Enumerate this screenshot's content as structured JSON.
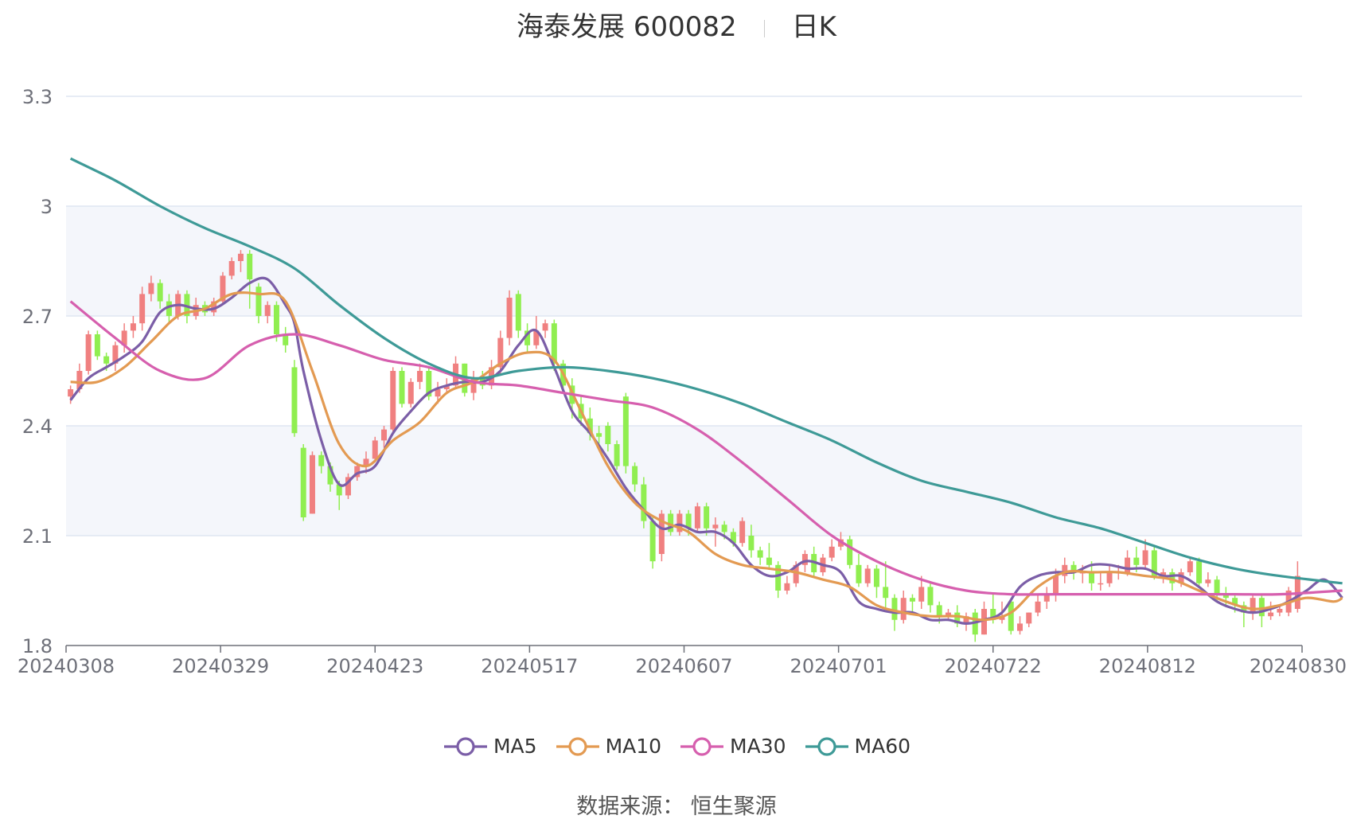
{
  "title": {
    "stock": "海泰发展 600082",
    "period": "日K"
  },
  "source": "数据来源： 恒生聚源",
  "colors": {
    "up": "#f08080",
    "down": "#90ee50",
    "MA5": "#7b5ea7",
    "MA10": "#e39a52",
    "MA30": "#d65fae",
    "MA60": "#3e9a97",
    "grid": "#dfe6f2",
    "band": "#f4f6fb",
    "axis": "#6e7079"
  },
  "chart_data": {
    "type": "candlestick",
    "title": "海泰发展 600082 日K",
    "ylim": [
      1.8,
      3.3
    ],
    "y_ticks": [
      "1.8",
      "2.1",
      "2.4",
      "2.7",
      "3",
      "3.3"
    ],
    "x_ticks": [
      "20240308",
      "20240329",
      "20240423",
      "20240517",
      "20240607",
      "20240701",
      "20240722",
      "20240812",
      "20240830"
    ],
    "grid": true,
    "legend_position": "bottom-center",
    "candles": [
      [
        2.48,
        2.5,
        2.46,
        2.51
      ],
      [
        2.5,
        2.55,
        2.49,
        2.57
      ],
      [
        2.55,
        2.65,
        2.54,
        2.66
      ],
      [
        2.65,
        2.59,
        2.58,
        2.66
      ],
      [
        2.59,
        2.57,
        2.55,
        2.6
      ],
      [
        2.57,
        2.62,
        2.55,
        2.63
      ],
      [
        2.62,
        2.66,
        2.6,
        2.68
      ],
      [
        2.66,
        2.68,
        2.64,
        2.7
      ],
      [
        2.68,
        2.76,
        2.66,
        2.78
      ],
      [
        2.76,
        2.79,
        2.74,
        2.81
      ],
      [
        2.79,
        2.74,
        2.72,
        2.8
      ],
      [
        2.74,
        2.7,
        2.68,
        2.76
      ],
      [
        2.7,
        2.76,
        2.69,
        2.77
      ],
      [
        2.76,
        2.7,
        2.68,
        2.77
      ],
      [
        2.7,
        2.73,
        2.69,
        2.75
      ],
      [
        2.73,
        2.71,
        2.7,
        2.74
      ],
      [
        2.71,
        2.74,
        2.7,
        2.75
      ],
      [
        2.74,
        2.81,
        2.73,
        2.82
      ],
      [
        2.81,
        2.85,
        2.8,
        2.86
      ],
      [
        2.85,
        2.87,
        2.82,
        2.88
      ],
      [
        2.87,
        2.8,
        2.72,
        2.88
      ],
      [
        2.78,
        2.7,
        2.68,
        2.79
      ],
      [
        2.7,
        2.73,
        2.68,
        2.74
      ],
      [
        2.73,
        2.65,
        2.63,
        2.74
      ],
      [
        2.65,
        2.62,
        2.6,
        2.67
      ],
      [
        2.56,
        2.38,
        2.37,
        2.58
      ],
      [
        2.34,
        2.15,
        2.14,
        2.35
      ],
      [
        2.16,
        2.32,
        2.16,
        2.33
      ],
      [
        2.32,
        2.29,
        2.27,
        2.33
      ],
      [
        2.29,
        2.24,
        2.22,
        2.3
      ],
      [
        2.24,
        2.21,
        2.17,
        2.25
      ],
      [
        2.21,
        2.26,
        2.2,
        2.27
      ],
      [
        2.26,
        2.29,
        2.25,
        2.3
      ],
      [
        2.29,
        2.31,
        2.27,
        2.33
      ],
      [
        2.31,
        2.36,
        2.3,
        2.37
      ],
      [
        2.36,
        2.39,
        2.34,
        2.4
      ],
      [
        2.39,
        2.55,
        2.38,
        2.56
      ],
      [
        2.55,
        2.46,
        2.45,
        2.56
      ],
      [
        2.46,
        2.52,
        2.45,
        2.53
      ],
      [
        2.52,
        2.55,
        2.5,
        2.57
      ],
      [
        2.55,
        2.48,
        2.47,
        2.56
      ],
      [
        2.48,
        2.5,
        2.46,
        2.52
      ],
      [
        2.5,
        2.51,
        2.49,
        2.53
      ],
      [
        2.51,
        2.57,
        2.5,
        2.59
      ],
      [
        2.57,
        2.49,
        2.48,
        2.57
      ],
      [
        2.49,
        2.53,
        2.47,
        2.55
      ],
      [
        2.53,
        2.51,
        2.5,
        2.55
      ],
      [
        2.51,
        2.56,
        2.5,
        2.58
      ],
      [
        2.56,
        2.64,
        2.54,
        2.66
      ],
      [
        2.64,
        2.75,
        2.62,
        2.77
      ],
      [
        2.76,
        2.66,
        2.64,
        2.77
      ],
      [
        2.66,
        2.62,
        2.6,
        2.68
      ],
      [
        2.62,
        2.66,
        2.61,
        2.7
      ],
      [
        2.66,
        2.68,
        2.64,
        2.69
      ],
      [
        2.68,
        2.57,
        2.55,
        2.69
      ],
      [
        2.57,
        2.51,
        2.5,
        2.58
      ],
      [
        2.51,
        2.46,
        2.42,
        2.53
      ],
      [
        2.46,
        2.42,
        2.4,
        2.48
      ],
      [
        2.42,
        2.38,
        2.36,
        2.45
      ],
      [
        2.38,
        2.37,
        2.35,
        2.4
      ],
      [
        2.4,
        2.35,
        2.33,
        2.41
      ],
      [
        2.35,
        2.29,
        2.28,
        2.36
      ],
      [
        2.48,
        2.29,
        2.27,
        2.49
      ],
      [
        2.29,
        2.24,
        2.22,
        2.3
      ],
      [
        2.24,
        2.14,
        2.12,
        2.26
      ],
      [
        2.14,
        2.03,
        2.01,
        2.15
      ],
      [
        2.05,
        2.16,
        2.03,
        2.17
      ],
      [
        2.16,
        2.11,
        2.1,
        2.17
      ],
      [
        2.11,
        2.16,
        2.1,
        2.17
      ],
      [
        2.16,
        2.12,
        2.1,
        2.17
      ],
      [
        2.12,
        2.18,
        2.11,
        2.19
      ],
      [
        2.18,
        2.12,
        2.1,
        2.19
      ],
      [
        2.12,
        2.13,
        2.07,
        2.15
      ],
      [
        2.13,
        2.11,
        2.09,
        2.14
      ],
      [
        2.11,
        2.08,
        2.07,
        2.12
      ],
      [
        2.08,
        2.14,
        2.07,
        2.15
      ],
      [
        2.1,
        2.06,
        2.04,
        2.13
      ],
      [
        2.06,
        2.04,
        2.02,
        2.07
      ],
      [
        2.04,
        2.02,
        2.01,
        2.08
      ],
      [
        2.02,
        1.95,
        1.93,
        2.03
      ],
      [
        1.95,
        1.97,
        1.94,
        1.99
      ],
      [
        1.97,
        2.02,
        1.96,
        2.03
      ],
      [
        2.02,
        2.05,
        2.0,
        2.06
      ],
      [
        2.05,
        2.0,
        1.99,
        2.07
      ],
      [
        2.0,
        2.04,
        1.99,
        2.05
      ],
      [
        2.04,
        2.07,
        2.03,
        2.09
      ],
      [
        2.07,
        2.09,
        2.06,
        2.11
      ],
      [
        2.09,
        2.02,
        2.01,
        2.1
      ],
      [
        2.02,
        1.97,
        1.96,
        2.05
      ],
      [
        1.97,
        2.01,
        1.96,
        2.02
      ],
      [
        2.01,
        1.96,
        1.93,
        2.02
      ],
      [
        1.96,
        1.93,
        1.9,
        2.03
      ],
      [
        1.93,
        1.87,
        1.84,
        1.94
      ],
      [
        1.87,
        1.93,
        1.86,
        1.95
      ],
      [
        1.93,
        1.92,
        1.89,
        1.94
      ],
      [
        1.92,
        1.96,
        1.9,
        1.99
      ],
      [
        1.96,
        1.91,
        1.89,
        1.97
      ],
      [
        1.91,
        1.88,
        1.86,
        1.92
      ],
      [
        1.88,
        1.89,
        1.87,
        1.9
      ],
      [
        1.89,
        1.86,
        1.85,
        1.91
      ],
      [
        1.86,
        1.88,
        1.84,
        1.89
      ],
      [
        1.89,
        1.83,
        1.81,
        1.9
      ],
      [
        1.83,
        1.9,
        1.83,
        1.92
      ],
      [
        1.9,
        1.87,
        1.86,
        1.94
      ],
      [
        1.87,
        1.88,
        1.86,
        1.92
      ],
      [
        1.92,
        1.84,
        1.83,
        1.93
      ],
      [
        1.84,
        1.86,
        1.83,
        1.88
      ],
      [
        1.86,
        1.89,
        1.85,
        1.89
      ],
      [
        1.89,
        1.92,
        1.88,
        1.94
      ],
      [
        1.92,
        1.94,
        1.9,
        1.96
      ],
      [
        1.94,
        1.99,
        1.92,
        2.01
      ],
      [
        1.99,
        2.02,
        1.97,
        2.04
      ],
      [
        2.02,
        2.0,
        1.98,
        2.03
      ],
      [
        2.0,
        2.0,
        1.97,
        2.02
      ],
      [
        2.0,
        1.97,
        1.95,
        2.03
      ],
      [
        1.97,
        1.97,
        1.95,
        2.0
      ],
      [
        1.97,
        2.0,
        1.96,
        2.02
      ],
      [
        2.0,
        2.0,
        1.98,
        2.02
      ],
      [
        2.0,
        2.04,
        1.99,
        2.06
      ],
      [
        2.04,
        2.02,
        2.0,
        2.07
      ],
      [
        2.02,
        2.06,
        2.01,
        2.09
      ],
      [
        2.06,
        1.99,
        1.98,
        2.07
      ],
      [
        1.99,
        2.0,
        1.97,
        2.01
      ],
      [
        2.0,
        1.97,
        1.95,
        2.01
      ],
      [
        1.97,
        2.0,
        1.96,
        2.01
      ],
      [
        2.0,
        2.03,
        1.99,
        2.04
      ],
      [
        2.03,
        1.97,
        1.96,
        2.04
      ],
      [
        1.97,
        1.98,
        1.96,
        2.0
      ],
      [
        1.98,
        1.94,
        1.92,
        1.99
      ],
      [
        1.94,
        1.93,
        1.91,
        1.96
      ],
      [
        1.93,
        1.91,
        1.89,
        1.94
      ],
      [
        1.91,
        1.89,
        1.85,
        1.92
      ],
      [
        1.89,
        1.93,
        1.87,
        1.94
      ],
      [
        1.93,
        1.88,
        1.85,
        1.94
      ],
      [
        1.88,
        1.89,
        1.87,
        1.92
      ],
      [
        1.89,
        1.9,
        1.88,
        1.91
      ],
      [
        1.89,
        1.95,
        1.88,
        1.96
      ],
      [
        1.9,
        1.99,
        1.89,
        2.03
      ]
    ],
    "series": [
      {
        "name": "MA5",
        "x": [
          0,
          2,
          4,
          6,
          8,
          10,
          12,
          14,
          16,
          18,
          20,
          22,
          24,
          25,
          26,
          28,
          30,
          32,
          34,
          36,
          38,
          40,
          42,
          44,
          46,
          48,
          50,
          52,
          54,
          56,
          58,
          60,
          62,
          64,
          66,
          68,
          70,
          72,
          74,
          76,
          78,
          80,
          82,
          84,
          86,
          88,
          90,
          92,
          94,
          96,
          98,
          100,
          102,
          104,
          106,
          108,
          110,
          112,
          114,
          116,
          118,
          120,
          122,
          124,
          126,
          128,
          130,
          132,
          134,
          136,
          138,
          140,
          142
        ],
        "y": [
          2.47,
          2.53,
          2.56,
          2.59,
          2.63,
          2.71,
          2.73,
          2.72,
          2.72,
          2.75,
          2.79,
          2.8,
          2.73,
          2.68,
          2.55,
          2.36,
          2.24,
          2.27,
          2.29,
          2.38,
          2.44,
          2.49,
          2.51,
          2.52,
          2.52,
          2.55,
          2.62,
          2.66,
          2.56,
          2.44,
          2.38,
          2.31,
          2.23,
          2.17,
          2.12,
          2.13,
          2.11,
          2.11,
          2.08,
          2.02,
          1.99,
          2.0,
          2.03,
          2.02,
          2.0,
          1.92,
          1.9,
          1.89,
          1.89,
          1.87,
          1.87,
          1.86,
          1.87,
          1.89,
          1.96,
          1.99,
          2.0,
          2.0,
          2.02,
          2.02,
          2.01,
          2.01,
          1.99,
          1.99,
          1.96,
          1.92,
          1.9,
          1.89,
          1.9,
          1.92,
          1.95,
          1.98,
          1.93
        ]
      },
      {
        "name": "MA10",
        "x": [
          0,
          3,
          6,
          9,
          12,
          15,
          18,
          21,
          24,
          27,
          30,
          33,
          36,
          39,
          42,
          45,
          48,
          51,
          54,
          57,
          60,
          63,
          66,
          69,
          72,
          75,
          78,
          81,
          84,
          87,
          90,
          93,
          96,
          99,
          102,
          105,
          108,
          111,
          114,
          117,
          120,
          123,
          126,
          129,
          132,
          135,
          138,
          141,
          142
        ],
        "y": [
          2.52,
          2.52,
          2.56,
          2.63,
          2.7,
          2.72,
          2.76,
          2.76,
          2.74,
          2.55,
          2.35,
          2.29,
          2.36,
          2.41,
          2.49,
          2.52,
          2.57,
          2.6,
          2.58,
          2.44,
          2.29,
          2.19,
          2.14,
          2.11,
          2.05,
          2.02,
          2.01,
          2.0,
          1.98,
          1.96,
          1.91,
          1.89,
          1.88,
          1.88,
          1.87,
          1.89,
          1.96,
          2.0,
          2.0,
          2.0,
          1.99,
          1.98,
          1.95,
          1.92,
          1.9,
          1.91,
          1.93,
          1.92,
          1.93
        ]
      },
      {
        "name": "MA30",
        "x": [
          0,
          5,
          10,
          15,
          20,
          25,
          30,
          35,
          40,
          45,
          50,
          55,
          60,
          65,
          70,
          75,
          80,
          85,
          90,
          95,
          100,
          105,
          110,
          115,
          120,
          125,
          130,
          135,
          142
        ],
        "y": [
          2.74,
          2.64,
          2.55,
          2.53,
          2.62,
          2.65,
          2.62,
          2.58,
          2.56,
          2.52,
          2.51,
          2.49,
          2.47,
          2.45,
          2.39,
          2.3,
          2.2,
          2.1,
          2.03,
          1.98,
          1.95,
          1.94,
          1.94,
          1.94,
          1.94,
          1.94,
          1.94,
          1.94,
          1.95
        ]
      },
      {
        "name": "MA60",
        "x": [
          0,
          5,
          10,
          15,
          20,
          25,
          30,
          35,
          40,
          45,
          50,
          55,
          60,
          65,
          70,
          75,
          80,
          85,
          90,
          95,
          100,
          105,
          110,
          115,
          120,
          125,
          130,
          135,
          142
        ],
        "y": [
          3.13,
          3.07,
          3.0,
          2.94,
          2.89,
          2.83,
          2.73,
          2.64,
          2.57,
          2.53,
          2.55,
          2.56,
          2.55,
          2.53,
          2.5,
          2.46,
          2.41,
          2.36,
          2.3,
          2.25,
          2.22,
          2.19,
          2.15,
          2.12,
          2.08,
          2.04,
          2.01,
          1.99,
          1.97
        ]
      }
    ]
  }
}
